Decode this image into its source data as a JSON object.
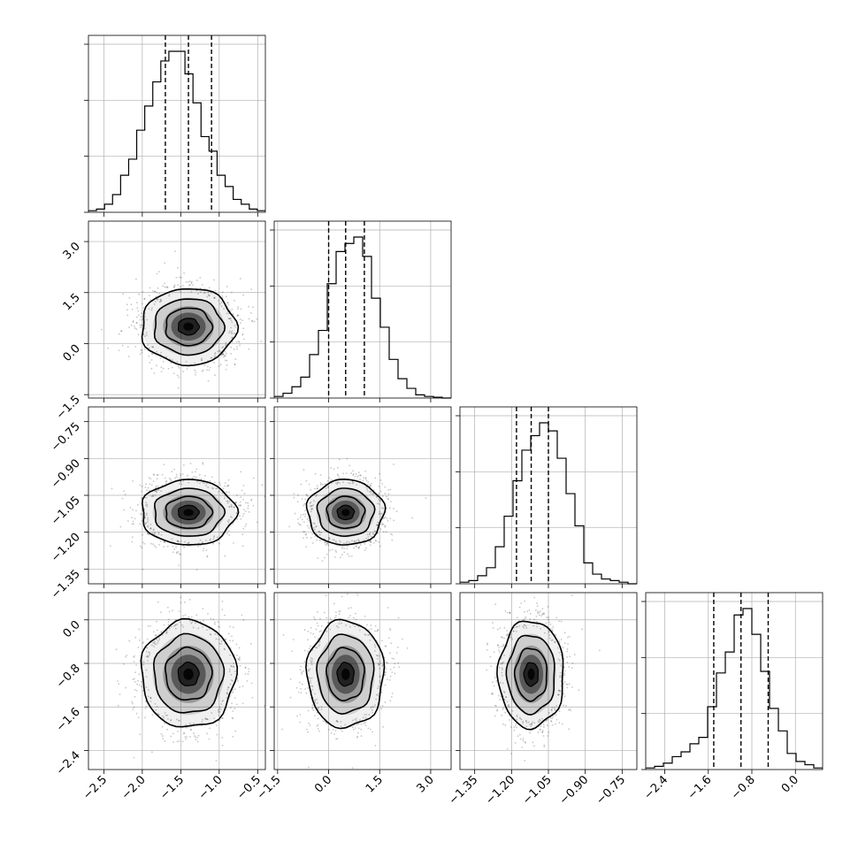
{
  "chart_data": {
    "type": "corner",
    "n_params": 4,
    "grid": true,
    "quantile_lines": "dashed",
    "params": [
      {
        "range": [
          -2.7,
          -0.4
        ],
        "ticks": [
          -2.5,
          -2.0,
          -1.5,
          -1.0,
          -0.5
        ],
        "tick_labels": [
          "−2.5",
          "−2.0",
          "−1.5",
          "−1.0",
          "−0.5"
        ],
        "quantiles": [
          -1.7,
          -1.4,
          -1.1
        ],
        "median": -1.4,
        "sigma": 0.3,
        "hist": [
          0.01,
          0.02,
          0.05,
          0.11,
          0.23,
          0.33,
          0.51,
          0.66,
          0.81,
          0.94,
          1.0,
          1.0,
          0.86,
          0.68,
          0.47,
          0.38,
          0.23,
          0.16,
          0.08,
          0.05,
          0.02,
          0.01
        ]
      },
      {
        "range": [
          -1.6,
          3.6
        ],
        "ticks": [
          -1.5,
          0.0,
          1.5,
          3.0
        ],
        "tick_labels": [
          "−1.5",
          "0.0",
          "1.5",
          "3.0"
        ],
        "quantiles": [
          0.0,
          0.5,
          1.05
        ],
        "median": 0.5,
        "sigma": 0.55,
        "hist": [
          0.01,
          0.03,
          0.07,
          0.13,
          0.27,
          0.42,
          0.71,
          0.91,
          0.96,
          1.0,
          0.88,
          0.62,
          0.44,
          0.24,
          0.12,
          0.06,
          0.02,
          0.01,
          0.005,
          0.0
        ]
      },
      {
        "range": [
          -1.41,
          -0.69
        ],
        "ticks": [
          -1.35,
          -1.2,
          -1.05,
          -0.9,
          -0.75
        ],
        "tick_labels": [
          "−1.35",
          "−1.20",
          "−1.05",
          "−0.90",
          "−0.75"
        ],
        "quantiles": [
          -1.18,
          -1.12,
          -1.05
        ],
        "median": -1.12,
        "sigma": 0.065,
        "hist": [
          0.01,
          0.02,
          0.05,
          0.1,
          0.23,
          0.42,
          0.64,
          0.83,
          0.92,
          1.0,
          0.95,
          0.78,
          0.56,
          0.36,
          0.13,
          0.06,
          0.03,
          0.02,
          0.01,
          0.0
        ]
      },
      {
        "range": [
          -2.75,
          0.5
        ],
        "ticks": [
          -2.4,
          -1.6,
          -0.8,
          0.0
        ],
        "tick_labels": [
          "−2.4",
          "−1.6",
          "−0.8",
          "0.0"
        ],
        "quantiles": [
          -1.5,
          -1.0,
          -0.5
        ],
        "median": -1.0,
        "sigma": 0.48,
        "hist": [
          0.01,
          0.02,
          0.04,
          0.08,
          0.11,
          0.16,
          0.2,
          0.39,
          0.6,
          0.73,
          0.96,
          1.0,
          0.84,
          0.61,
          0.38,
          0.24,
          0.1,
          0.05,
          0.03,
          0.01
        ]
      }
    ]
  }
}
